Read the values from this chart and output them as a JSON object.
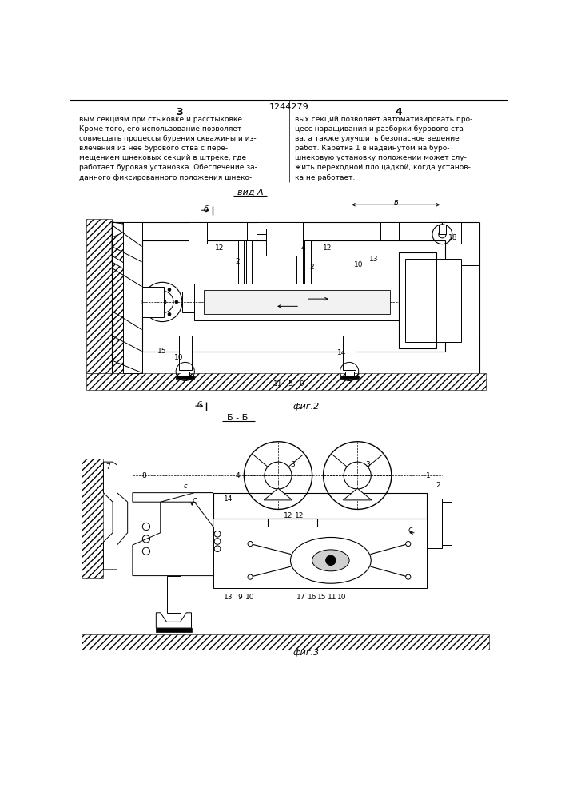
{
  "page_width": 7.07,
  "page_height": 10.0,
  "bg_color": "#ffffff",
  "patent_number": "1244279",
  "col_left_num": "3",
  "col_right_num": "4",
  "text_left": "вым секциям при стыковке и расстыковке.\nКроме того, его использование позволяет\nсовмещать процессы бурения скважины и из-\nвлечения из нее бурового ства с пере-\nмещением шнековых секций в штреке, где\nработает буровая установка. Обеспечение за-\nданного фиксированного положения шнеко-",
  "text_right": "вых секций позволяет автоматизировать про-\nцесс наращивания и разборки бурового ста-\nва, а также улучшить безопасное ведение\nработ. Каретка 1 в надвинутом на буро-\nшнековую установку положении может слу-\nжить переходной площадкой, когда установ-\nка не работает.",
  "vid_a_label": "вид А",
  "fig2_label": "фиг.2",
  "fig3_label": "фиг.3",
  "section_label": "Б - Б"
}
